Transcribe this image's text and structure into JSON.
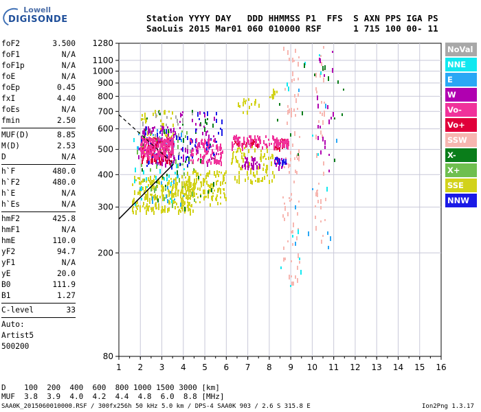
{
  "logo": {
    "line1": "Lowell",
    "line2": "DIGISONDE"
  },
  "header": {
    "line1": "Station YYYY DAY   DDD HHMMSS P1  FFS  S AXN PPS IGA PS",
    "line2": "SaoLuis 2015 Mar01 060 010000 RSF      1 715 100 00- 11"
  },
  "params": {
    "group1": [
      {
        "label": "foF2",
        "value": "3.500"
      },
      {
        "label": "foF1",
        "value": "N/A"
      },
      {
        "label": "foF1p",
        "value": "N/A"
      },
      {
        "label": "foE",
        "value": "N/A"
      },
      {
        "label": "foEp",
        "value": "0.45"
      },
      {
        "label": "fxI",
        "value": "4.40"
      },
      {
        "label": "foEs",
        "value": "N/A"
      },
      {
        "label": "fmin",
        "value": "2.50"
      }
    ],
    "group2": [
      {
        "label": "MUF(D)",
        "value": "8.85"
      },
      {
        "label": "M(D)",
        "value": "2.53"
      },
      {
        "label": "D",
        "value": "N/A"
      }
    ],
    "group3": [
      {
        "label": "h`F",
        "value": "480.0"
      },
      {
        "label": "h`F2",
        "value": "480.0"
      },
      {
        "label": "h`E",
        "value": "N/A"
      },
      {
        "label": "h`Es",
        "value": "N/A"
      }
    ],
    "group4": [
      {
        "label": "hmF2",
        "value": "425.8"
      },
      {
        "label": "hmF1",
        "value": "N/A"
      },
      {
        "label": "hmE",
        "value": "110.0"
      },
      {
        "label": "yF2",
        "value": "94.7"
      },
      {
        "label": "yF1",
        "value": "N/A"
      },
      {
        "label": "yE",
        "value": "20.0"
      },
      {
        "label": "B0",
        "value": "111.9"
      },
      {
        "label": "B1",
        "value": "1.27"
      }
    ],
    "group5": [
      {
        "label": "C-level",
        "value": "33"
      }
    ],
    "auto": [
      "Auto:",
      "Artist5",
      "500200"
    ]
  },
  "legend": [
    {
      "label": "NoVal",
      "color": "#a8a8a8"
    },
    {
      "label": "NNE",
      "color": "#11e8f0"
    },
    {
      "label": "E",
      "color": "#2aa7f5"
    },
    {
      "label": "W",
      "color": "#b000b0"
    },
    {
      "label": "Vo-",
      "color": "#f0329b"
    },
    {
      "label": "Vo+",
      "color": "#e0003a"
    },
    {
      "label": "SSW",
      "color": "#f7b6b0"
    },
    {
      "label": "X-",
      "color": "#0a7d1a"
    },
    {
      "label": "X+",
      "color": "#6fbf4f"
    },
    {
      "label": "SSE",
      "color": "#d2d21a"
    },
    {
      "label": "NNW",
      "color": "#1a1ae6"
    }
  ],
  "footer": {
    "d_row": "D    100  200  400  600  800 1000 1500 3000 [km]",
    "muf_row": "MUF  3.8  3.9  4.0  4.2  4.4  4.8  6.0  8.8 [MHz]",
    "file_info": "SAA0K_2015060010000.RSF / 300fx256h 50 kHz 5.0 km / DPS-4 SAA0K 903 / 2.6 S 315.8 E",
    "version": "Ion2Png 1.3.17"
  },
  "chart_data": {
    "type": "scatter",
    "x": {
      "min": 1,
      "max": 16,
      "ticks": [
        1,
        2,
        3,
        4,
        5,
        6,
        7,
        8,
        9,
        10,
        11,
        12,
        13,
        14,
        15,
        16
      ]
    },
    "y": {
      "min": 80,
      "max": 1280,
      "scale": "log",
      "ticks": [
        80,
        200,
        300,
        400,
        500,
        600,
        700,
        800,
        900,
        1000,
        1100,
        1280
      ]
    },
    "grid": true,
    "series": [
      {
        "name": "Vo-",
        "color": "#f0329b",
        "blobs": [
          [
            2.0,
            3.5,
            470,
            560,
            180
          ],
          [
            4.3,
            5.8,
            450,
            560,
            80
          ],
          [
            6.2,
            8.2,
            510,
            570,
            60
          ],
          [
            8.2,
            8.9,
            520,
            560,
            40
          ]
        ]
      },
      {
        "name": "Vo+",
        "color": "#e0003a",
        "blobs": [
          [
            2.0,
            3.5,
            450,
            560,
            80
          ],
          [
            6.3,
            7.5,
            520,
            560,
            25
          ],
          [
            8.2,
            8.8,
            510,
            550,
            20
          ]
        ]
      },
      {
        "name": "W",
        "color": "#b000b0",
        "blobs": [
          [
            1.9,
            3.6,
            440,
            620,
            90
          ],
          [
            3.8,
            5.5,
            440,
            720,
            50
          ],
          [
            6.7,
            7.6,
            430,
            470,
            30
          ],
          [
            8.2,
            8.8,
            430,
            470,
            20
          ],
          [
            10.2,
            11.0,
            380,
            1200,
            20
          ]
        ]
      },
      {
        "name": "SSE",
        "color": "#d2d21a",
        "blobs": [
          [
            1.6,
            4.5,
            290,
            400,
            260
          ],
          [
            4.0,
            6.0,
            310,
            420,
            120
          ],
          [
            6.2,
            8.2,
            380,
            520,
            90
          ],
          [
            6.5,
            7.5,
            700,
            790,
            15
          ],
          [
            8.0,
            8.4,
            800,
            860,
            10
          ],
          [
            2.0,
            3.5,
            500,
            720,
            60
          ]
        ]
      },
      {
        "name": "SSW",
        "color": "#f7b6b0",
        "blobs": [
          [
            8.6,
            9.4,
            150,
            1280,
            80
          ],
          [
            10.1,
            10.6,
            220,
            1280,
            40
          ]
        ]
      },
      {
        "name": "NNW",
        "color": "#1a1ae6",
        "blobs": [
          [
            2.0,
            4.5,
            430,
            620,
            40
          ],
          [
            4.3,
            5.8,
            480,
            700,
            25
          ],
          [
            8.2,
            8.8,
            440,
            470,
            15
          ]
        ]
      },
      {
        "name": "NNE",
        "color": "#11e8f0",
        "blobs": [
          [
            1.6,
            4.0,
            310,
            560,
            35
          ],
          [
            8.5,
            11.0,
            150,
            1200,
            15
          ]
        ]
      },
      {
        "name": "E",
        "color": "#2aa7f5",
        "blobs": [
          [
            1.8,
            4.0,
            310,
            620,
            30
          ],
          [
            9.0,
            11.2,
            200,
            900,
            10
          ]
        ]
      },
      {
        "name": "X-",
        "color": "#0a7d1a",
        "blobs": [
          [
            1.8,
            5.5,
            300,
            720,
            45
          ],
          [
            8.0,
            11.5,
            400,
            1100,
            15
          ]
        ]
      },
      {
        "name": "X+",
        "color": "#6fbf4f",
        "blobs": [
          [
            1.8,
            4.5,
            300,
            600,
            40
          ]
        ]
      },
      {
        "name": "NoVal",
        "color": "#a8a8a8",
        "blobs": [
          [
            2.0,
            4.5,
            480,
            720,
            25
          ]
        ]
      }
    ],
    "fitted_lines": {
      "solid_profile": [
        [
          1.0,
          270
        ],
        [
          3.55,
          440
        ]
      ],
      "dashed_profile": [
        [
          1.0,
          680
        ],
        [
          3.55,
          440
        ]
      ]
    }
  }
}
